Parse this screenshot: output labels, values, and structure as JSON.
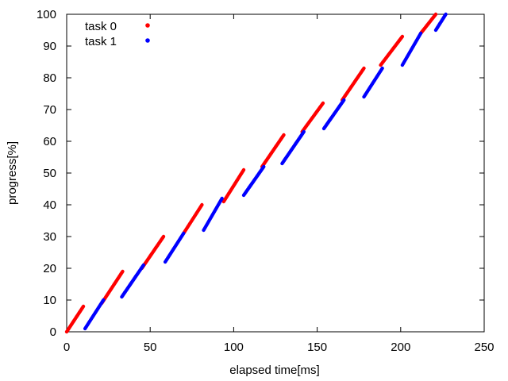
{
  "chart_data": {
    "type": "scatter",
    "xlabel": "elapsed time[ms]",
    "ylabel": "progress[%]",
    "xlim": [
      0,
      250
    ],
    "ylim": [
      0,
      100
    ],
    "xticks": [
      0,
      50,
      100,
      150,
      200,
      250
    ],
    "yticks": [
      0,
      10,
      20,
      30,
      40,
      50,
      60,
      70,
      80,
      90,
      100
    ],
    "grid": false,
    "legend_position": "top-left",
    "series": [
      {
        "name": "task 0",
        "color": "#ff0000",
        "segments": [
          {
            "x": [
              0,
              10
            ],
            "y": [
              0,
              8
            ]
          },
          {
            "x": [
              21,
              33.5
            ],
            "y": [
              9,
              19
            ]
          },
          {
            "x": [
              45,
              58
            ],
            "y": [
              20,
              30
            ]
          },
          {
            "x": [
              70,
              81
            ],
            "y": [
              31,
              40
            ]
          },
          {
            "x": [
              94,
              106
            ],
            "y": [
              41,
              51
            ]
          },
          {
            "x": [
              117,
              130
            ],
            "y": [
              52,
              62
            ]
          },
          {
            "x": [
              141,
              153.5
            ],
            "y": [
              63,
              72
            ]
          },
          {
            "x": [
              165,
              178
            ],
            "y": [
              73,
              83
            ]
          },
          {
            "x": [
              188,
              201
            ],
            "y": [
              84,
              93
            ]
          },
          {
            "x": [
              212,
              221
            ],
            "y": [
              94,
              100
            ]
          }
        ]
      },
      {
        "name": "task 1",
        "color": "#0000ff",
        "segments": [
          {
            "x": [
              11,
              22
            ],
            "y": [
              1,
              10
            ]
          },
          {
            "x": [
              33,
              46
            ],
            "y": [
              11,
              21
            ]
          },
          {
            "x": [
              59,
              70
            ],
            "y": [
              22,
              31
            ]
          },
          {
            "x": [
              82,
              93
            ],
            "y": [
              32,
              42
            ]
          },
          {
            "x": [
              106,
              118
            ],
            "y": [
              43,
              52
            ]
          },
          {
            "x": [
              129,
              142
            ],
            "y": [
              53,
              63
            ]
          },
          {
            "x": [
              154,
              166
            ],
            "y": [
              64,
              73
            ]
          },
          {
            "x": [
              178,
              189
            ],
            "y": [
              74,
              83
            ]
          },
          {
            "x": [
              201,
              212
            ],
            "y": [
              84,
              94
            ]
          },
          {
            "x": [
              221,
              227
            ],
            "y": [
              95,
              100
            ]
          }
        ]
      }
    ]
  }
}
